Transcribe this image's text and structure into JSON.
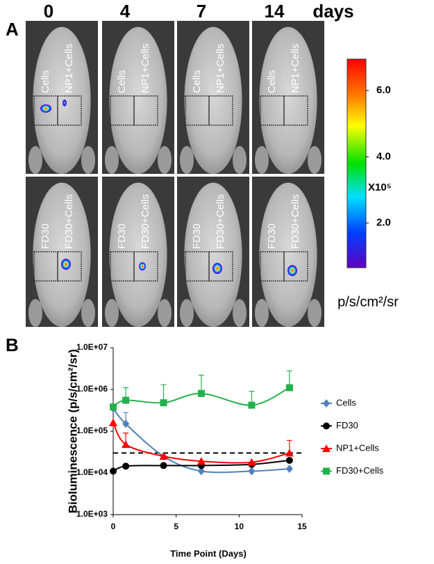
{
  "panel_a": {
    "label": "A",
    "days": [
      "0",
      "4",
      "7",
      "14"
    ],
    "days_unit": "days",
    "top_row_labels": [
      "Cells",
      "NP1+Cells"
    ],
    "bottom_row_labels": [
      "FD30",
      "FD30+Cells"
    ],
    "colorbar": {
      "lim": [
        0.65,
        6.95
      ],
      "ticks": [
        {
          "value": 6,
          "label": "6.0"
        },
        {
          "value": 4,
          "label": "4.0"
        },
        {
          "value": 2,
          "label": "2.0"
        }
      ],
      "multiplier": "X10⁵",
      "unit": "p/s/cm²/sr"
    }
  },
  "chart_data": {
    "type": "line",
    "panel_label": "B",
    "x_label": "Time Point (Days)",
    "y_label": "Bioluminescence (p/s/cm²/sr)",
    "log_y": true,
    "xlim": [
      0,
      15
    ],
    "xticks": [
      0,
      5,
      10,
      15
    ],
    "ylim": [
      1000,
      10000000
    ],
    "yticks": [
      {
        "value": 1000,
        "label": "1.0E+03"
      },
      {
        "value": 10000,
        "label": "1.0E+04"
      },
      {
        "value": 100000,
        "label": "1.0E+05"
      },
      {
        "value": 1000000,
        "label": "1.0E+06"
      },
      {
        "value": 10000000,
        "label": "1.0E+07"
      }
    ],
    "reference_line": 30000,
    "x": [
      0,
      1,
      4,
      7,
      11,
      14
    ],
    "legend_position": "right",
    "series": [
      {
        "name": "Cells",
        "color": "#4f81bd",
        "marker": "diamond",
        "values": [
          350000,
          150000,
          25000,
          11000,
          11000,
          12500
        ],
        "errors": [
          null,
          130000,
          null,
          null,
          null,
          null
        ]
      },
      {
        "name": "FD30",
        "color": "#000000",
        "marker": "circle",
        "values": [
          11000,
          14500,
          15000,
          15000,
          16000,
          20000
        ],
        "errors": [
          null,
          null,
          null,
          null,
          null,
          null
        ]
      },
      {
        "name": "NP1+Cells",
        "color": "#ff0000",
        "marker": "triangle",
        "values": [
          160000,
          48000,
          25000,
          19000,
          18000,
          30000
        ],
        "errors": [
          null,
          42000,
          null,
          null,
          null,
          30000
        ]
      },
      {
        "name": "FD30+Cells",
        "color": "#22b14c",
        "marker": "square",
        "values": [
          380000,
          550000,
          480000,
          800000,
          420000,
          1100000
        ],
        "errors": [
          null,
          550000,
          820000,
          1400000,
          480000,
          1700000
        ]
      }
    ]
  }
}
